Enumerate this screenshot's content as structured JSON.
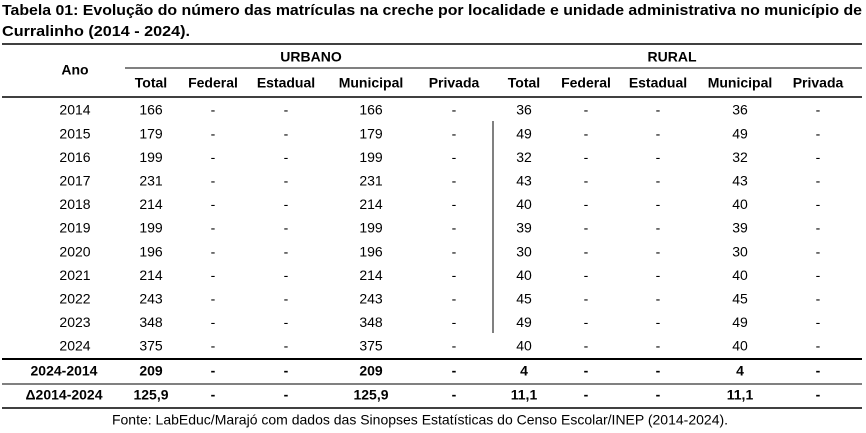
{
  "title_lines": [
    "Tabela 01: Evolução do número das matrículas na creche por localidade e unidade administrativa no município de",
    "Curralinho (2014 - 2024)."
  ],
  "table": {
    "row_header": "Ano",
    "groups": [
      "URBANO",
      "RURAL"
    ],
    "columns": [
      "Total",
      "Federal",
      "Estadual",
      "Municipal",
      "Privada",
      "Total",
      "Federal",
      "Estadual",
      "Municipal",
      "Privada"
    ],
    "rows": [
      [
        "2014",
        "166",
        "-",
        "-",
        "166",
        "-",
        "36",
        "-",
        "-",
        "36",
        "-"
      ],
      [
        "2015",
        "179",
        "-",
        "-",
        "179",
        "-",
        "49",
        "-",
        "-",
        "49",
        "-"
      ],
      [
        "2016",
        "199",
        "-",
        "-",
        "199",
        "-",
        "32",
        "-",
        "-",
        "32",
        "-"
      ],
      [
        "2017",
        "231",
        "-",
        "-",
        "231",
        "-",
        "43",
        "-",
        "-",
        "43",
        "-"
      ],
      [
        "2018",
        "214",
        "-",
        "-",
        "214",
        "-",
        "40",
        "-",
        "-",
        "40",
        "-"
      ],
      [
        "2019",
        "199",
        "-",
        "-",
        "199",
        "-",
        "39",
        "-",
        "-",
        "39",
        "-"
      ],
      [
        "2020",
        "196",
        "-",
        "-",
        "196",
        "-",
        "30",
        "-",
        "-",
        "30",
        "-"
      ],
      [
        "2021",
        "214",
        "-",
        "-",
        "214",
        "-",
        "40",
        "-",
        "-",
        "40",
        "-"
      ],
      [
        "2022",
        "243",
        "-",
        "-",
        "243",
        "-",
        "45",
        "-",
        "-",
        "45",
        "-"
      ],
      [
        "2023",
        "348",
        "-",
        "-",
        "348",
        "-",
        "49",
        "-",
        "-",
        "49",
        "-"
      ],
      [
        "2024",
        "375",
        "-",
        "-",
        "375",
        "-",
        "40",
        "-",
        "-",
        "40",
        "-"
      ]
    ],
    "summary_rows": [
      [
        "2024-2014",
        "209",
        "-",
        "-",
        "209",
        "-",
        "4",
        "-",
        "-",
        "4",
        "-"
      ],
      [
        "Δ2014-2024",
        "125,9",
        "-",
        "-",
        "125,9",
        "-",
        "11,1",
        "-",
        "-",
        "11,1",
        "-"
      ]
    ]
  },
  "source": "Fonte: LabEduc/Marajó com dados das Sinopses Estatísticas do Censo Escolar/INEP (2014-2024)."
}
